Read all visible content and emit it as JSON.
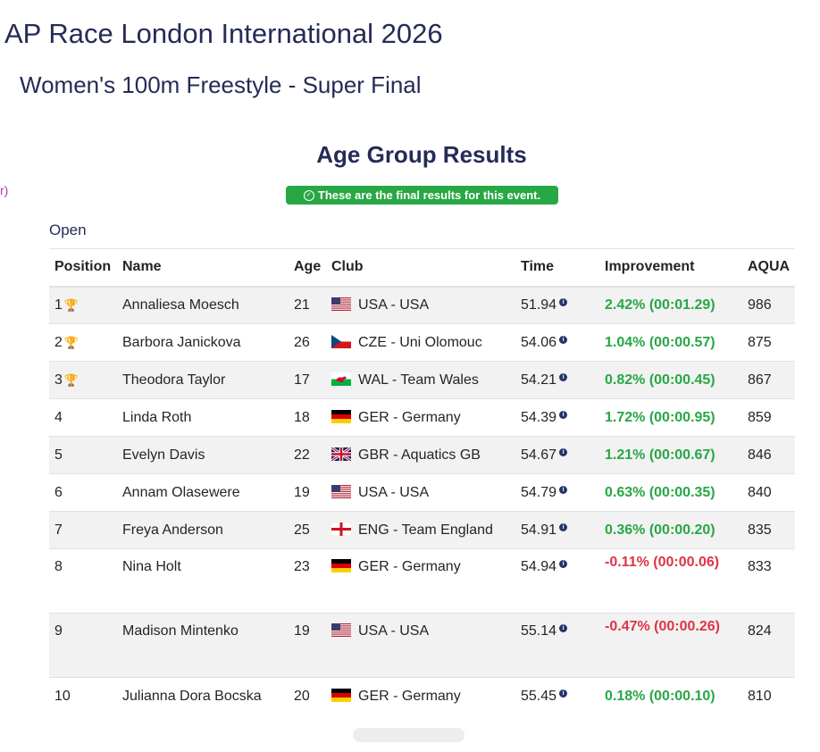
{
  "meet": {
    "title": "AP Race London International 2026"
  },
  "event": {
    "title": "Women's 100m Freestyle - Super Final"
  },
  "section": {
    "title": "Age Group Results"
  },
  "edge_fragment": "r)",
  "badge": {
    "text": "These are the final results for this event.",
    "icon": "check-circle-icon"
  },
  "group": {
    "label": "Open"
  },
  "table": {
    "headers": [
      "Position",
      "Name",
      "Age",
      "Club",
      "Time",
      "Improvement",
      "AQUA"
    ],
    "rows": [
      {
        "position": "1",
        "trophy": "gold",
        "name": "Annaliesa Moesch",
        "age": "21",
        "flag": "usa",
        "club": "USA - USA",
        "time": "51.94",
        "improvement": "2.42% (00:01.29)",
        "improvement_sign": "positive",
        "aqua": "986"
      },
      {
        "position": "2",
        "trophy": "silver",
        "name": "Barbora Janickova",
        "age": "26",
        "flag": "cze",
        "club": "CZE - Uni Olomouc",
        "time": "54.06",
        "improvement": "1.04% (00:00.57)",
        "improvement_sign": "positive",
        "aqua": "875"
      },
      {
        "position": "3",
        "trophy": "bronze",
        "name": "Theodora Taylor",
        "age": "17",
        "flag": "wal",
        "club": "WAL - Team Wales",
        "time": "54.21",
        "improvement": "0.82% (00:00.45)",
        "improvement_sign": "positive",
        "aqua": "867"
      },
      {
        "position": "4",
        "trophy": "",
        "name": "Linda Roth",
        "age": "18",
        "flag": "ger",
        "club": "GER - Germany",
        "time": "54.39",
        "improvement": "1.72% (00:00.95)",
        "improvement_sign": "positive",
        "aqua": "859"
      },
      {
        "position": "5",
        "trophy": "",
        "name": "Evelyn Davis",
        "age": "22",
        "flag": "gbr",
        "club": "GBR - Aquatics GB",
        "time": "54.67",
        "improvement": "1.21% (00:00.67)",
        "improvement_sign": "positive",
        "aqua": "846"
      },
      {
        "position": "6",
        "trophy": "",
        "name": "Annam Olasewere",
        "age": "19",
        "flag": "usa",
        "club": "USA - USA",
        "time": "54.79",
        "improvement": "0.63% (00:00.35)",
        "improvement_sign": "positive",
        "aqua": "840"
      },
      {
        "position": "7",
        "trophy": "",
        "name": "Freya Anderson",
        "age": "25",
        "flag": "eng",
        "club": "ENG - Team England",
        "time": "54.91",
        "improvement": "0.36% (00:00.20)",
        "improvement_sign": "positive",
        "aqua": "835"
      },
      {
        "position": "8",
        "trophy": "",
        "name": "Nina Holt",
        "age": "23",
        "flag": "ger",
        "club": "GER - Germany",
        "time": "54.94",
        "improvement": "-0.11% (00:00.06)",
        "improvement_sign": "negative",
        "aqua": "833"
      },
      {
        "position": "9",
        "trophy": "",
        "name": "Madison Mintenko",
        "age": "19",
        "flag": "usa",
        "club": "USA - USA",
        "time": "55.14",
        "improvement": "-0.47% (00:00.26)",
        "improvement_sign": "negative",
        "aqua": "824"
      },
      {
        "position": "10",
        "trophy": "",
        "name": "Julianna Dora Bocska",
        "age": "20",
        "flag": "ger",
        "club": "GER - Germany",
        "time": "55.45",
        "improvement": "0.18% (00:00.10)",
        "improvement_sign": "positive",
        "aqua": "810"
      }
    ]
  },
  "colors": {
    "heading": "#252b57",
    "badge_bg": "#28a745",
    "improvement_positive": "#28a745",
    "improvement_negative": "#dc3545",
    "stripe": "#f2f2f2"
  }
}
